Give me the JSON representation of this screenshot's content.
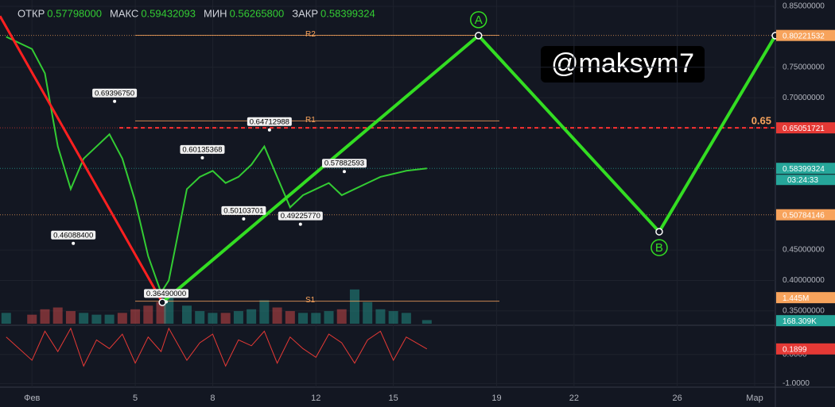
{
  "chart_data": {
    "type": "line",
    "header": [
      {
        "name": "ОТКР",
        "label": "0.57798000"
      },
      {
        "name": "МАКС",
        "label": "0.59432093"
      },
      {
        "name": "МИН",
        "label": "0.56265800"
      },
      {
        "name": "ЗАКР",
        "label": "0.58399324"
      }
    ],
    "watermark": "@maksym7",
    "x": [
      0,
      1,
      1.5,
      2,
      2.5,
      3,
      3.5,
      4,
      4.5,
      5,
      5.5,
      6,
      6.3,
      7,
      7.5,
      8,
      8.5,
      9,
      9.5,
      10,
      10.5,
      11,
      11.5,
      12,
      12.5,
      13,
      13.5,
      14,
      14.5,
      15,
      15.5,
      16.3
    ],
    "series": [
      {
        "color": "#33cc33",
        "values": [
          0.8,
          0.78,
          0.74,
          0.62,
          0.55,
          0.6,
          0.62,
          0.64,
          0.6,
          0.53,
          0.44,
          0.38,
          0.4,
          0.55,
          0.57,
          0.58,
          0.56,
          0.57,
          0.59,
          0.62,
          0.57,
          0.52,
          0.54,
          0.55,
          0.56,
          0.54,
          0.55,
          0.56,
          0.57,
          0.575,
          0.58,
          0.584
        ]
      }
    ],
    "xlim": [
      -0.24,
      29.8
    ],
    "xticks": [
      {
        "value": 1,
        "label": "Фев"
      },
      5,
      8,
      12,
      15,
      19,
      22,
      26,
      {
        "value": 29,
        "label": "Мар"
      }
    ],
    "ylim": [
      0.329,
      0.8604
    ],
    "yticks": [
      {
        "value": 0.85,
        "label": "0.85000000"
      },
      {
        "value": 0.75,
        "label": "0.75000000"
      },
      {
        "value": 0.7,
        "label": "0.70000000"
      },
      {
        "value": 0.45,
        "label": "0.45000000"
      },
      {
        "value": 0.4,
        "label": "0.40000000"
      },
      {
        "value": 0.35,
        "label": "0.35000000"
      }
    ],
    "price_badges": [
      {
        "value": 0.80221532,
        "color": "#f7a35c"
      },
      {
        "value": 0.65051721,
        "color": "#e53935"
      },
      {
        "value": 0.58399324,
        "color": "#26a69a"
      },
      {
        "value": 0.50784146,
        "color": "#f7a35c"
      }
    ],
    "countdown": "03:24:33",
    "fib": {
      "value": 0.65051721,
      "label": "0.65",
      "color": "#ff3030"
    },
    "levels": [
      {
        "name": "R2",
        "value": 0.8025,
        "color": "#f7a35c"
      },
      {
        "name": "R1",
        "value": 0.662,
        "color": "#f7a35c"
      },
      {
        "name": "S1",
        "value": 0.366,
        "color": "#f7a35c"
      }
    ],
    "wave": {
      "x": [
        6.05,
        18.3,
        25.3,
        29.8
      ],
      "values": [
        0.364,
        0.802,
        0.48,
        0.802
      ],
      "point_labels": [
        null,
        "A",
        "B",
        null
      ],
      "color": "#33dd22"
    },
    "red_trend": {
      "x": [
        -0.24,
        6.05
      ],
      "values": [
        0.834,
        0.364
      ],
      "color": "#ff2020"
    },
    "annotations": [
      {
        "x": 4.2,
        "value": 0.6939675,
        "label": "0.69396750"
      },
      {
        "x": 10.2,
        "value": 0.64712988,
        "label": "0.64712988"
      },
      {
        "x": 7.6,
        "value": 0.60135368,
        "label": "0.60135368"
      },
      {
        "x": 2.6,
        "value": 0.460884,
        "label": "0.46088400"
      },
      {
        "x": 9.2,
        "value": 0.50103701,
        "label": "0.50103701"
      },
      {
        "x": 11.4,
        "value": 0.4922577,
        "label": "0.49225770"
      },
      {
        "x": 13.1,
        "value": 0.57882593,
        "label": "0.57882593"
      },
      {
        "x": 6.2,
        "value": 0.3649,
        "label": "0.36490000"
      }
    ],
    "volume": {
      "ylim": [
        0,
        2.2
      ],
      "values": [
        0.6,
        0.5,
        0.8,
        0.9,
        0.7,
        0.6,
        0.5,
        0.5,
        0.6,
        0.8,
        1.0,
        1.2,
        1.6,
        1.0,
        0.7,
        0.6,
        0.6,
        0.7,
        0.8,
        1.3,
        0.9,
        0.7,
        0.6,
        0.6,
        0.7,
        0.8,
        1.9,
        1.2,
        0.8,
        0.7,
        0.6,
        0.2
      ],
      "badges": [
        {
          "value": 1.445,
          "label": "1.445M",
          "color": "#f7a35c"
        },
        {
          "value": 0.168309,
          "label": "168.309K",
          "color": "#26a69a"
        }
      ]
    },
    "oscillator": {
      "color": "#e53935",
      "ylim": [
        -1.1,
        0.95
      ],
      "yticks": [
        {
          "value": 0,
          "label": "0.0000"
        },
        {
          "value": -1,
          "label": "-1.0000"
        }
      ],
      "values": [
        0.6,
        -0.2,
        0.8,
        0.1,
        0.9,
        -0.4,
        0.5,
        0.2,
        0.7,
        -0.3,
        0.6,
        0.1,
        0.9,
        -0.2,
        0.4,
        0.7,
        -0.4,
        0.5,
        0.3,
        0.8,
        -0.3,
        0.6,
        0.2,
        -0.1,
        0.7,
        0.4,
        -0.3,
        0.5,
        0.8,
        -0.2,
        0.6,
        0.19
      ],
      "badge": {
        "value": 0.1899
      }
    }
  }
}
